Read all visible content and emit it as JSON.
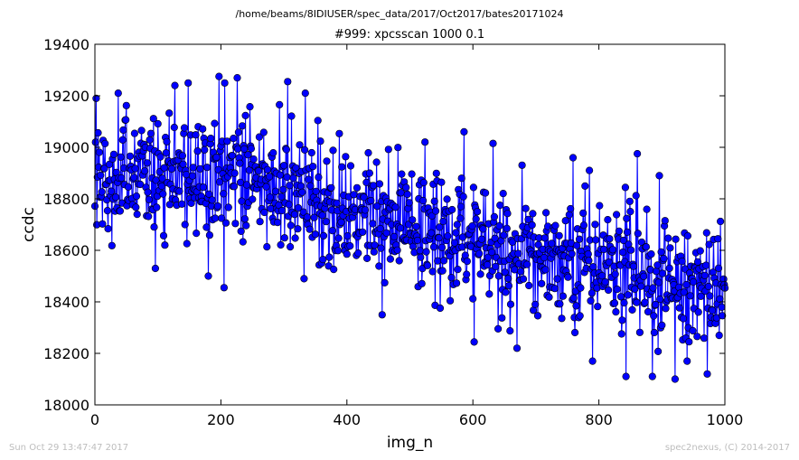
{
  "suptitle": "/home/beams/8IDIUSER/spec_data/2017/Oct2017/bates20171024",
  "footer_left": "Sun Oct 29 13:47:47 2017",
  "footer_right": "spec2nexus, (C) 2014-2017",
  "chart_data": {
    "type": "line",
    "title": "#999: xpcsscan 1000 0.1",
    "xlabel": "img_n",
    "ylabel": "ccdc",
    "xlim": [
      0,
      1000
    ],
    "ylim": [
      18000,
      19400
    ],
    "xticks": [
      0,
      200,
      400,
      600,
      800,
      1000
    ],
    "yticks": [
      18000,
      18200,
      18400,
      18600,
      18800,
      19000,
      19200,
      19400
    ],
    "grid": false,
    "legend": "none",
    "marker": "circle",
    "color": "#0000ff",
    "series": [
      {
        "name": "",
        "x": [
          0,
          25,
          50,
          75,
          100,
          125,
          150,
          175,
          200,
          225,
          250,
          275,
          300,
          325,
          350,
          375,
          400,
          425,
          450,
          475,
          500,
          525,
          550,
          575,
          600,
          625,
          650,
          675,
          700,
          725,
          750,
          775,
          800,
          825,
          850,
          875,
          900,
          925,
          950,
          975,
          1000
        ],
        "y": [
          18930,
          18870,
          18900,
          18910,
          18880,
          18890,
          18930,
          18880,
          18920,
          18890,
          18860,
          18850,
          18840,
          18820,
          18790,
          18770,
          18750,
          18740,
          18720,
          18710,
          18690,
          18680,
          18660,
          18640,
          18630,
          18610,
          18600,
          18590,
          18570,
          18560,
          18550,
          18540,
          18530,
          18520,
          18510,
          18500,
          18490,
          18480,
          18470,
          18450,
          18430
        ]
      }
    ],
    "extremes": [
      {
        "x": 2,
        "y": 19190
      },
      {
        "x": 37,
        "y": 19210
      },
      {
        "x": 127,
        "y": 19240
      },
      {
        "x": 148,
        "y": 19250
      },
      {
        "x": 197,
        "y": 19275
      },
      {
        "x": 226,
        "y": 19270
      },
      {
        "x": 306,
        "y": 19255
      },
      {
        "x": 334,
        "y": 19210
      },
      {
        "x": 586,
        "y": 19060
      },
      {
        "x": 632,
        "y": 19015
      },
      {
        "x": 861,
        "y": 18975
      },
      {
        "x": 785,
        "y": 18910
      },
      {
        "x": 896,
        "y": 18890
      },
      {
        "x": 96,
        "y": 18530
      },
      {
        "x": 180,
        "y": 18500
      },
      {
        "x": 205,
        "y": 18455
      },
      {
        "x": 332,
        "y": 18490
      },
      {
        "x": 456,
        "y": 18350
      },
      {
        "x": 640,
        "y": 18295
      },
      {
        "x": 670,
        "y": 18220
      },
      {
        "x": 790,
        "y": 18170
      },
      {
        "x": 843,
        "y": 18110
      },
      {
        "x": 921,
        "y": 18100
      },
      {
        "x": 940,
        "y": 18170
      },
      {
        "x": 972,
        "y": 18120
      }
    ]
  }
}
